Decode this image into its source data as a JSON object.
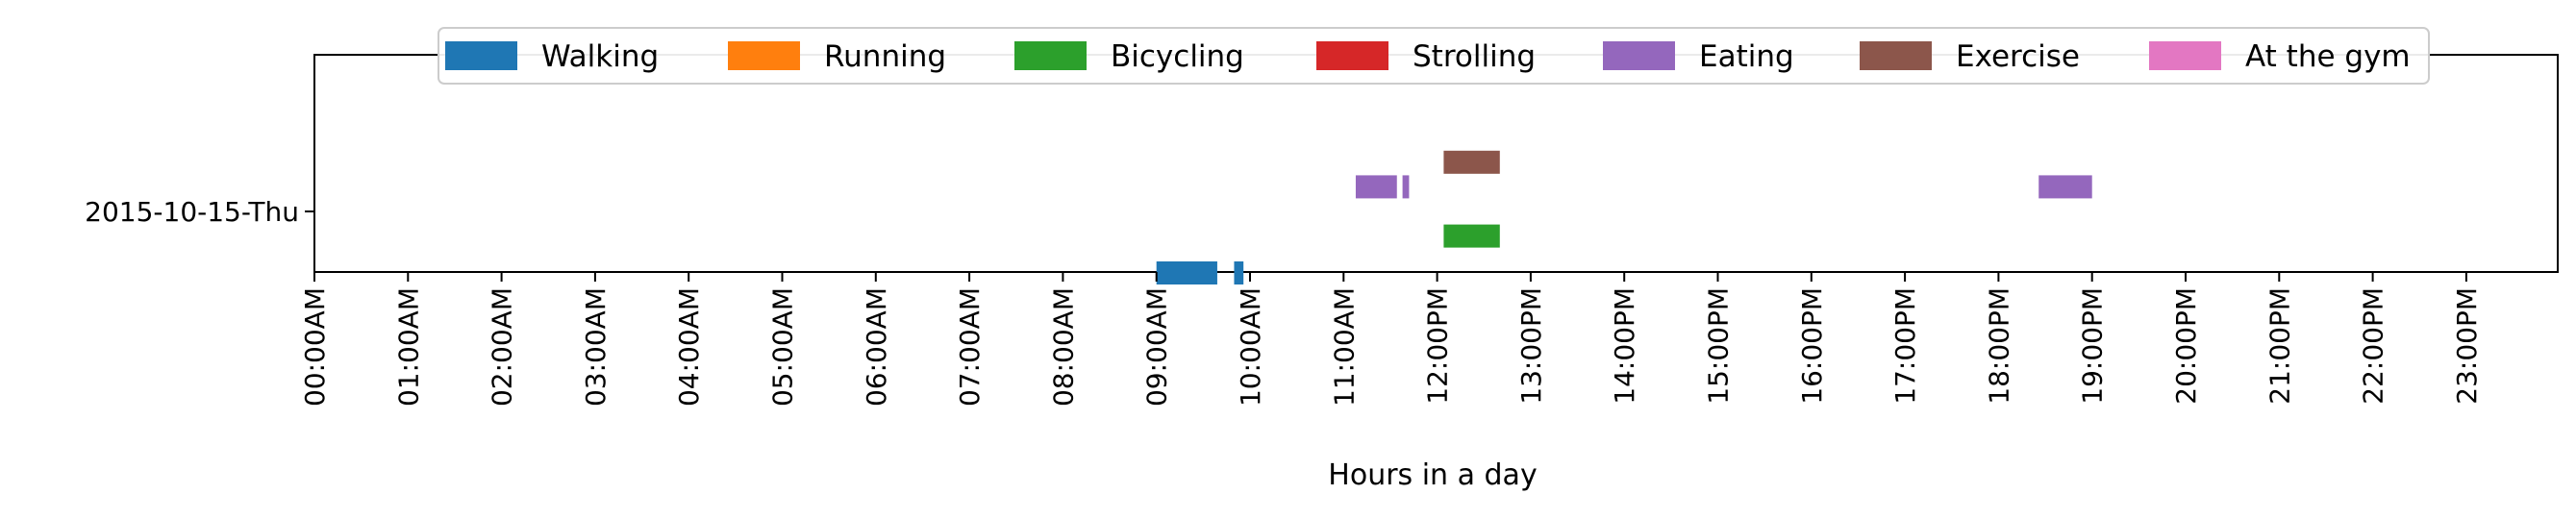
{
  "chart_data": {
    "type": "timeline",
    "xlabel": "Hours in a day",
    "ylabel": "",
    "xlim": [
      0,
      24
    ],
    "categories": [
      "2015-10-15-Thu"
    ],
    "x_tick_labels": [
      "00:00AM",
      "01:00AM",
      "02:00AM",
      "03:00AM",
      "04:00AM",
      "05:00AM",
      "06:00AM",
      "07:00AM",
      "08:00AM",
      "09:00AM",
      "10:00AM",
      "11:00AM",
      "12:00PM",
      "13:00PM",
      "14:00PM",
      "15:00PM",
      "16:00PM",
      "17:00PM",
      "18:00PM",
      "19:00PM",
      "20:00PM",
      "21:00PM",
      "22:00PM",
      "23:00PM"
    ],
    "grid": false,
    "legend_position": "top",
    "series": [
      {
        "name": "Walking",
        "color": "#1f77b4",
        "lane": -1.0,
        "intervals": [
          [
            9.0,
            9.65
          ],
          [
            9.83,
            9.93
          ]
        ]
      },
      {
        "name": "Running",
        "color": "#ff7f0e",
        "lane": -0.8,
        "intervals": []
      },
      {
        "name": "Bicycling",
        "color": "#2ca02c",
        "lane": -0.4,
        "intervals": [
          [
            12.07,
            12.67
          ]
        ]
      },
      {
        "name": "Strolling",
        "color": "#d62728",
        "lane": 0.0,
        "intervals": []
      },
      {
        "name": "Eating",
        "color": "#9467bd",
        "lane": 0.4,
        "intervals": [
          [
            11.13,
            11.57
          ],
          [
            11.63,
            11.7
          ],
          [
            18.43,
            19.0
          ]
        ]
      },
      {
        "name": "Exercise",
        "color": "#8c564b",
        "lane": 0.8,
        "intervals": [
          [
            12.07,
            12.67
          ]
        ]
      },
      {
        "name": "At the gym",
        "color": "#e377c2",
        "lane": 1.2,
        "intervals": []
      }
    ]
  }
}
